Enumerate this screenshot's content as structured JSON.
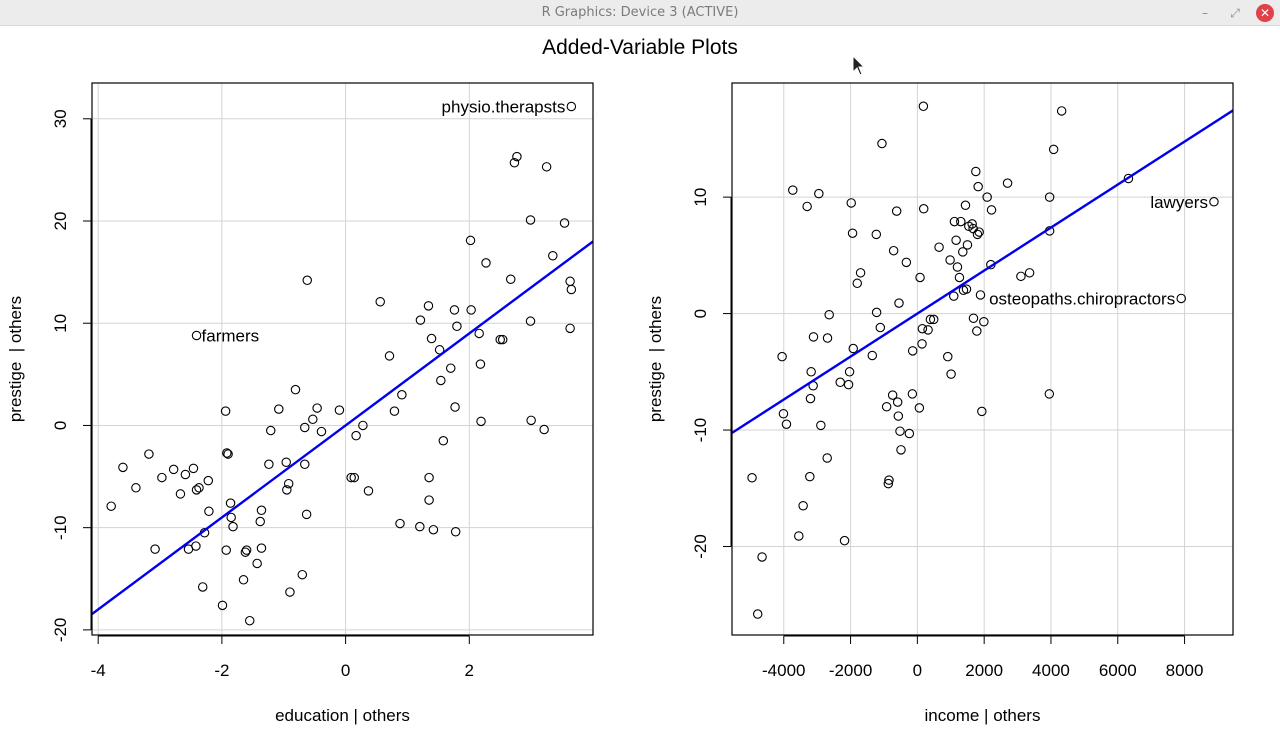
{
  "window": {
    "title": "R Graphics: Device 3 (ACTIVE)",
    "minimize_glyph": "–",
    "maximize_glyph": "⤢",
    "close_glyph": "✕"
  },
  "figure": {
    "title": "Added-Variable Plots"
  },
  "chart_data": [
    {
      "type": "scatter",
      "xlabel": "education | others",
      "ylabel": "prestige  | others",
      "xlim": [
        -4.1,
        4.0
      ],
      "ylim": [
        -20.5,
        33.5
      ],
      "xticks": [
        -4,
        -2,
        0,
        2
      ],
      "xtick_labels": [
        "-4",
        "-2",
        "0",
        "2"
      ],
      "yticks": [
        -20,
        -10,
        0,
        10,
        20,
        30
      ],
      "ytick_labels": [
        "-20",
        "-10",
        "0",
        "10",
        "20",
        "30"
      ],
      "grid": true,
      "line_color": "#0000ee",
      "fit_line": {
        "slope": 4.5,
        "intercept": 0.0
      },
      "points": [
        [
          -3.79,
          -7.9
        ],
        [
          -3.6,
          -4.1
        ],
        [
          -3.39,
          -6.1
        ],
        [
          -3.18,
          -2.8
        ],
        [
          -3.08,
          -12.1
        ],
        [
          -2.97,
          -5.1
        ],
        [
          -2.78,
          -4.3
        ],
        [
          -2.67,
          -6.7
        ],
        [
          -2.59,
          -4.8
        ],
        [
          -2.54,
          -12.1
        ],
        [
          -2.46,
          -4.2
        ],
        [
          -2.42,
          -11.8
        ],
        [
          -2.37,
          -6.1
        ],
        [
          -2.31,
          -15.8
        ],
        [
          -2.28,
          -10.5
        ],
        [
          -2.22,
          -5.4
        ],
        [
          -2.21,
          -8.4
        ],
        [
          -2.41,
          -6.3
        ],
        [
          -1.99,
          -17.6
        ],
        [
          -1.94,
          1.4
        ],
        [
          -1.93,
          -12.2
        ],
        [
          -1.92,
          -2.7
        ],
        [
          -1.9,
          -2.8
        ],
        [
          -1.86,
          -7.6
        ],
        [
          -1.85,
          -9.0
        ],
        [
          -1.82,
          -9.9
        ],
        [
          -1.65,
          -15.1
        ],
        [
          -1.62,
          -12.4
        ],
        [
          -1.6,
          -12.2
        ],
        [
          -1.55,
          -19.1
        ],
        [
          -1.43,
          -13.5
        ],
        [
          -1.38,
          -9.4
        ],
        [
          -1.36,
          -8.3
        ],
        [
          -1.36,
          -12.0
        ],
        [
          -1.24,
          -3.8
        ],
        [
          -1.21,
          -0.5
        ],
        [
          -1.08,
          1.6
        ],
        [
          -0.96,
          -3.6
        ],
        [
          -0.95,
          -6.3
        ],
        [
          -0.92,
          -5.7
        ],
        [
          -0.9,
          -16.3
        ],
        [
          -0.81,
          3.5
        ],
        [
          -0.7,
          -14.6
        ],
        [
          -0.66,
          -0.2
        ],
        [
          -0.66,
          -3.8
        ],
        [
          -0.63,
          -8.7
        ],
        [
          -0.62,
          14.2
        ],
        [
          -0.53,
          0.6
        ],
        [
          -0.46,
          1.7
        ],
        [
          -0.39,
          -0.6
        ],
        [
          -0.1,
          1.5
        ],
        [
          0.09,
          -5.1
        ],
        [
          0.14,
          -5.1
        ],
        [
          0.17,
          -1.0
        ],
        [
          0.28,
          0.0
        ],
        [
          0.37,
          -6.4
        ],
        [
          0.56,
          12.1
        ],
        [
          0.71,
          6.8
        ],
        [
          0.79,
          1.4
        ],
        [
          0.88,
          -9.6
        ],
        [
          0.91,
          3.0
        ],
        [
          1.2,
          -9.9
        ],
        [
          1.21,
          10.3
        ],
        [
          1.34,
          11.7
        ],
        [
          1.35,
          -5.1
        ],
        [
          1.35,
          -7.3
        ],
        [
          1.39,
          8.5
        ],
        [
          1.42,
          -10.2
        ],
        [
          1.52,
          7.4
        ],
        [
          1.54,
          4.4
        ],
        [
          1.58,
          -1.5
        ],
        [
          1.7,
          5.6
        ],
        [
          1.76,
          11.3
        ],
        [
          1.77,
          1.8
        ],
        [
          1.78,
          -10.4
        ],
        [
          1.8,
          9.7
        ],
        [
          2.02,
          18.1
        ],
        [
          2.03,
          11.3
        ],
        [
          2.16,
          9.0
        ],
        [
          2.18,
          6.0
        ],
        [
          2.19,
          0.4
        ],
        [
          2.27,
          15.9
        ],
        [
          2.5,
          8.4
        ],
        [
          2.54,
          8.4
        ],
        [
          2.67,
          14.3
        ],
        [
          2.73,
          25.7
        ],
        [
          2.77,
          26.3
        ],
        [
          2.99,
          10.2
        ],
        [
          2.99,
          20.1
        ],
        [
          3.0,
          0.5
        ],
        [
          3.21,
          -0.4
        ],
        [
          3.25,
          25.3
        ],
        [
          3.35,
          16.6
        ],
        [
          3.54,
          19.8
        ],
        [
          3.63,
          14.1
        ],
        [
          3.63,
          9.5
        ],
        [
          3.65,
          13.3
        ],
        [
          3.65,
          31.2
        ],
        [
          -2.41,
          8.8
        ]
      ],
      "labels": [
        {
          "text": "physio.therapsts",
          "x": 3.65,
          "y": 31.2,
          "side": "left"
        },
        {
          "text": "farmers",
          "x": -2.41,
          "y": 8.8,
          "side": "right"
        }
      ]
    },
    {
      "type": "scatter",
      "xlabel": "income | others",
      "ylabel": "prestige  | others",
      "xlim": [
        -5550,
        9450
      ],
      "ylim": [
        -27.6,
        19.8
      ],
      "xticks": [
        -4000,
        -2000,
        0,
        2000,
        4000,
        6000,
        8000
      ],
      "xtick_labels": [
        "-4000",
        "-2000",
        "0",
        "2000",
        "4000",
        "6000",
        "8000"
      ],
      "yticks": [
        -20,
        -10,
        0,
        10
      ],
      "ytick_labels": [
        "-20",
        "-10",
        "0",
        "10"
      ],
      "grid": true,
      "line_color": "#0000ee",
      "fit_line": {
        "slope": 0.001846,
        "intercept": 0.0
      },
      "points": [
        [
          -4950,
          -14.1
        ],
        [
          -4650,
          -20.9
        ],
        [
          -4780,
          -25.8
        ],
        [
          -4050,
          -3.7
        ],
        [
          -4010,
          -8.6
        ],
        [
          -3920,
          -9.5
        ],
        [
          -3730,
          10.6
        ],
        [
          -3550,
          -19.1
        ],
        [
          -3420,
          -16.5
        ],
        [
          -3300,
          9.2
        ],
        [
          -3220,
          -14.0
        ],
        [
          -3200,
          -7.3
        ],
        [
          -3180,
          -5.0
        ],
        [
          -3120,
          -6.2
        ],
        [
          -3110,
          -2.0
        ],
        [
          -2950,
          10.3
        ],
        [
          -2890,
          -9.6
        ],
        [
          -2700,
          -12.4
        ],
        [
          -2690,
          -2.1
        ],
        [
          -2640,
          -0.1
        ],
        [
          -2310,
          -5.9
        ],
        [
          -2180,
          -19.5
        ],
        [
          -2060,
          -6.1
        ],
        [
          -2030,
          -5.0
        ],
        [
          -1980,
          9.5
        ],
        [
          -1940,
          6.9
        ],
        [
          -1920,
          -3.0
        ],
        [
          -1800,
          2.6
        ],
        [
          -1700,
          3.5
        ],
        [
          -1350,
          -3.6
        ],
        [
          -1230,
          6.8
        ],
        [
          -1220,
          0.1
        ],
        [
          -1110,
          -1.2
        ],
        [
          -1060,
          14.6
        ],
        [
          -920,
          -8.0
        ],
        [
          -870,
          -14.6
        ],
        [
          -850,
          -14.3
        ],
        [
          -740,
          -7.0
        ],
        [
          -710,
          5.4
        ],
        [
          -620,
          8.8
        ],
        [
          -590,
          -7.6
        ],
        [
          -570,
          -8.8
        ],
        [
          -550,
          0.9
        ],
        [
          -520,
          -10.1
        ],
        [
          -490,
          -11.7
        ],
        [
          -330,
          4.4
        ],
        [
          -240,
          -10.3
        ],
        [
          -150,
          -6.9
        ],
        [
          -140,
          -3.2
        ],
        [
          60,
          -8.1
        ],
        [
          80,
          3.1
        ],
        [
          140,
          -2.6
        ],
        [
          150,
          -1.3
        ],
        [
          180,
          17.8
        ],
        [
          190,
          9.0
        ],
        [
          320,
          -1.4
        ],
        [
          390,
          -0.5
        ],
        [
          490,
          -0.5
        ],
        [
          650,
          5.7
        ],
        [
          910,
          -3.7
        ],
        [
          980,
          4.6
        ],
        [
          1010,
          -5.2
        ],
        [
          1090,
          1.5
        ],
        [
          1110,
          7.9
        ],
        [
          1160,
          6.3
        ],
        [
          1200,
          4.0
        ],
        [
          1260,
          3.1
        ],
        [
          1300,
          7.9
        ],
        [
          1360,
          5.3
        ],
        [
          1380,
          2.0
        ],
        [
          1440,
          9.3
        ],
        [
          1470,
          2.1
        ],
        [
          1500,
          5.9
        ],
        [
          1540,
          7.5
        ],
        [
          1640,
          7.7
        ],
        [
          1670,
          7.3
        ],
        [
          1680,
          -0.4
        ],
        [
          1750,
          12.2
        ],
        [
          1780,
          -1.5
        ],
        [
          1800,
          6.8
        ],
        [
          1820,
          10.9
        ],
        [
          1850,
          7.0
        ],
        [
          1890,
          1.6
        ],
        [
          1930,
          -8.4
        ],
        [
          1990,
          -0.7
        ],
        [
          2090,
          10.0
        ],
        [
          2200,
          4.2
        ],
        [
          2220,
          8.9
        ],
        [
          2700,
          11.2
        ],
        [
          3100,
          3.2
        ],
        [
          3360,
          3.5
        ],
        [
          3950,
          -6.9
        ],
        [
          3960,
          7.1
        ],
        [
          3960,
          10.0
        ],
        [
          4080,
          14.1
        ],
        [
          4320,
          17.4
        ],
        [
          6320,
          11.6
        ],
        [
          7900,
          1.3
        ],
        [
          8880,
          9.6
        ]
      ],
      "labels": [
        {
          "text": "lawyers",
          "x": 8880,
          "y": 9.6,
          "side": "left"
        },
        {
          "text": "osteopaths.chiropractors",
          "x": 7900,
          "y": 1.3,
          "side": "left"
        }
      ]
    }
  ]
}
